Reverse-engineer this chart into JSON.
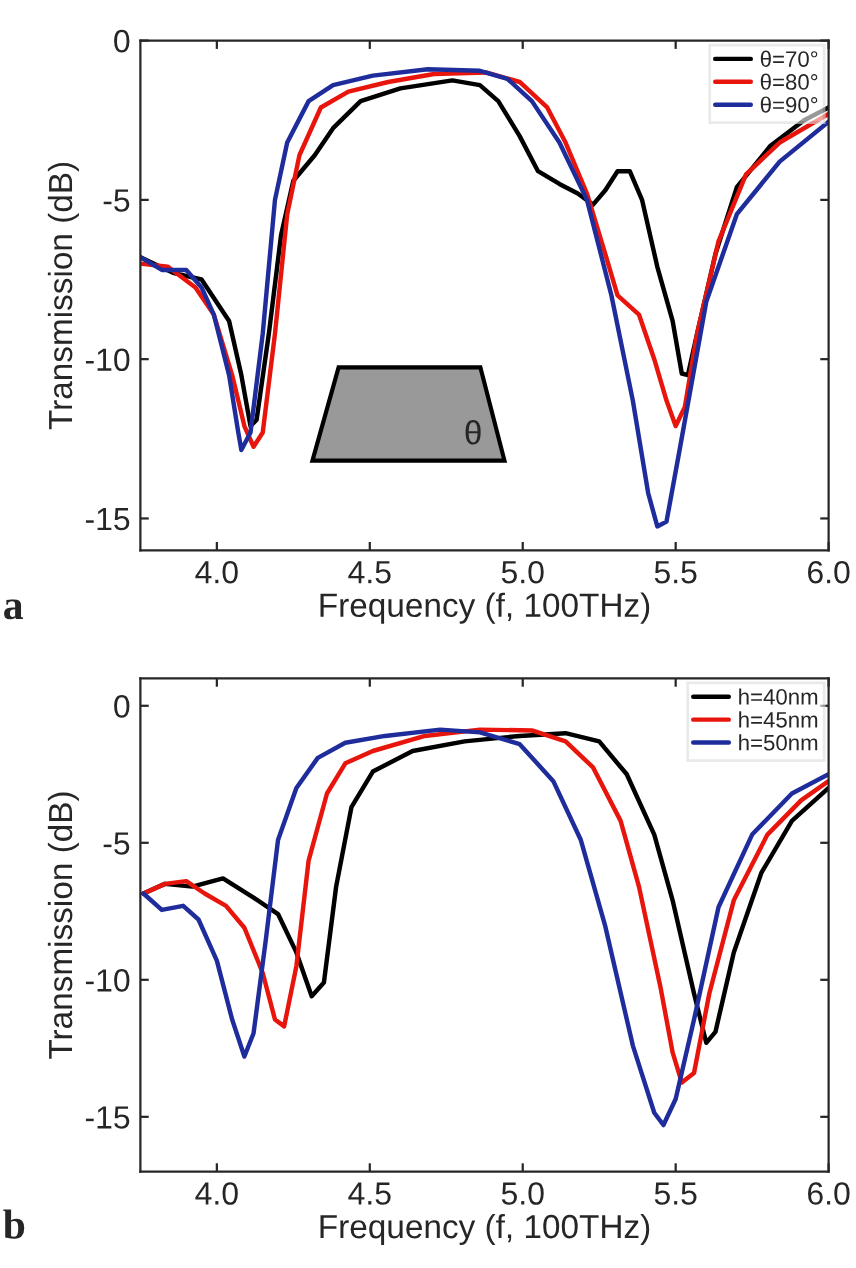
{
  "chart_data": [
    {
      "type": "line",
      "xlabel": "Frequency (f, 100THz)",
      "ylabel": "Transmission (dB)",
      "xlim": [
        3.75,
        6.0
      ],
      "ylim": [
        -16,
        0
      ],
      "xticks": [
        {
          "value": 4,
          "label": "4.0"
        },
        {
          "value": 4.5,
          "label": "4.5"
        },
        {
          "value": 5,
          "label": "5.0"
        },
        {
          "value": 5.5,
          "label": "5.5"
        },
        {
          "value": 6,
          "label": "6.0"
        }
      ],
      "yticks": [
        0,
        -5,
        -10,
        -15
      ],
      "legend": "top right",
      "grid": false,
      "annotations": [
        "a",
        "θ"
      ],
      "series": [
        {
          "name": "θ=70°",
          "color": "#000000",
          "x": [
            3.75,
            3.86,
            3.95,
            4.04,
            4.08,
            4.11,
            4.13,
            4.17,
            4.21,
            4.25,
            4.32,
            4.38,
            4.47,
            4.6,
            4.77,
            4.86,
            4.92,
            4.99,
            5.05,
            5.12,
            5.18,
            5.23,
            5.27,
            5.31,
            5.35,
            5.39,
            5.44,
            5.49,
            5.52,
            5.54,
            5.57,
            5.63,
            5.7,
            5.81,
            5.92,
            6.0
          ],
          "values": [
            -6.8,
            -7.3,
            -7.5,
            -8.8,
            -10.5,
            -12.1,
            -11.9,
            -9.2,
            -6.1,
            -4.4,
            -3.6,
            -2.75,
            -1.9,
            -1.5,
            -1.25,
            -1.4,
            -1.9,
            -3.0,
            -4.1,
            -4.5,
            -4.8,
            -5.15,
            -4.7,
            -4.1,
            -4.1,
            -5.0,
            -7.1,
            -8.8,
            -10.45,
            -10.5,
            -9.2,
            -6.7,
            -4.6,
            -3.3,
            -2.5,
            -2.1
          ]
        },
        {
          "name": "θ=80°",
          "color": "#e8150d",
          "x": [
            3.75,
            3.84,
            3.93,
            3.99,
            4.05,
            4.09,
            4.12,
            4.15,
            4.19,
            4.23,
            4.27,
            4.34,
            4.43,
            4.56,
            4.71,
            4.88,
            4.99,
            5.08,
            5.14,
            5.21,
            5.27,
            5.31,
            5.38,
            5.43,
            5.47,
            5.5,
            5.53,
            5.57,
            5.64,
            5.73,
            5.84,
            6.0
          ],
          "values": [
            -7.0,
            -7.1,
            -7.75,
            -8.6,
            -10.5,
            -12.1,
            -12.75,
            -12.3,
            -9.2,
            -5.45,
            -3.6,
            -2.1,
            -1.6,
            -1.3,
            -1.05,
            -1.0,
            -1.3,
            -2.1,
            -3.2,
            -4.8,
            -6.7,
            -8.0,
            -8.6,
            -10.0,
            -11.3,
            -12.1,
            -11.5,
            -9.2,
            -6.3,
            -4.2,
            -3.2,
            -2.3
          ]
        },
        {
          "name": "θ=90°",
          "color": "#1f2d9c",
          "x": [
            3.75,
            3.82,
            3.9,
            3.95,
            3.99,
            4.04,
            4.07,
            4.08,
            4.11,
            4.15,
            4.19,
            4.23,
            4.3,
            4.38,
            4.51,
            4.69,
            4.86,
            4.95,
            5.03,
            5.12,
            5.21,
            5.29,
            5.36,
            5.41,
            5.44,
            5.47,
            5.51,
            5.6,
            5.7,
            5.84,
            6.0
          ],
          "values": [
            -6.8,
            -7.2,
            -7.2,
            -7.75,
            -8.6,
            -10.5,
            -12.3,
            -12.85,
            -12.3,
            -9.2,
            -5.0,
            -3.2,
            -1.9,
            -1.4,
            -1.1,
            -0.9,
            -0.95,
            -1.2,
            -1.9,
            -3.2,
            -5.0,
            -8.0,
            -11.3,
            -14.2,
            -15.25,
            -15.1,
            -13.0,
            -8.2,
            -5.45,
            -3.8,
            -2.55
          ]
        }
      ]
    },
    {
      "type": "line",
      "xlabel": "Frequency (f, 100THz)",
      "ylabel": "Transmission (dB)",
      "xlim": [
        3.75,
        6.0
      ],
      "ylim": [
        -17,
        1
      ],
      "xticks": [
        {
          "value": 4,
          "label": "4.0"
        },
        {
          "value": 4.5,
          "label": "4.5"
        },
        {
          "value": 5,
          "label": "5.0"
        },
        {
          "value": 5.5,
          "label": "5.5"
        },
        {
          "value": 6,
          "label": "6.0"
        }
      ],
      "yticks": [
        0,
        -5,
        -10,
        -15
      ],
      "legend": "top right",
      "grid": false,
      "annotations": [
        "b"
      ],
      "series": [
        {
          "name": "h=40nm",
          "color": "#000000",
          "x": [
            3.76,
            3.83,
            3.92,
            4.02,
            4.12,
            4.2,
            4.26,
            4.31,
            4.35,
            4.39,
            4.44,
            4.51,
            4.64,
            4.81,
            4.99,
            5.14,
            5.25,
            5.34,
            5.43,
            5.49,
            5.56,
            5.6,
            5.63,
            5.69,
            5.78,
            5.88,
            6.0
          ],
          "values": [
            -6.85,
            -6.5,
            -6.6,
            -6.3,
            -7.0,
            -7.6,
            -9.0,
            -10.6,
            -10.1,
            -6.6,
            -3.7,
            -2.4,
            -1.65,
            -1.3,
            -1.1,
            -1.0,
            -1.3,
            -2.5,
            -4.7,
            -7.1,
            -10.5,
            -12.3,
            -11.9,
            -9.0,
            -6.1,
            -4.2,
            -3.0
          ]
        },
        {
          "name": "h=45nm",
          "color": "#e8150d",
          "x": [
            3.76,
            3.83,
            3.9,
            3.96,
            4.03,
            4.09,
            4.15,
            4.19,
            4.22,
            4.26,
            4.3,
            4.36,
            4.42,
            4.51,
            4.68,
            4.86,
            5.03,
            5.14,
            5.23,
            5.32,
            5.38,
            5.45,
            5.49,
            5.52,
            5.56,
            5.61,
            5.69,
            5.8,
            5.91,
            6.0
          ],
          "values": [
            -6.85,
            -6.5,
            -6.4,
            -6.85,
            -7.3,
            -8.1,
            -9.75,
            -11.45,
            -11.7,
            -9.5,
            -5.65,
            -3.2,
            -2.1,
            -1.65,
            -1.1,
            -0.87,
            -0.9,
            -1.3,
            -2.25,
            -4.2,
            -6.6,
            -10.25,
            -12.65,
            -13.75,
            -13.4,
            -10.5,
            -7.1,
            -4.7,
            -3.45,
            -2.75
          ]
        },
        {
          "name": "h=50nm",
          "color": "#1f2d9c",
          "x": [
            3.76,
            3.82,
            3.89,
            3.94,
            4.0,
            4.05,
            4.09,
            4.12,
            4.16,
            4.2,
            4.26,
            4.33,
            4.42,
            4.55,
            4.73,
            4.86,
            4.99,
            5.1,
            5.19,
            5.27,
            5.36,
            5.43,
            5.46,
            5.5,
            5.56,
            5.64,
            5.75,
            5.88,
            6.0
          ],
          "values": [
            -6.85,
            -7.45,
            -7.3,
            -7.8,
            -9.3,
            -11.45,
            -12.8,
            -11.95,
            -8.55,
            -4.9,
            -3.0,
            -1.9,
            -1.35,
            -1.1,
            -0.87,
            -0.97,
            -1.4,
            -2.75,
            -4.9,
            -8.05,
            -12.4,
            -14.85,
            -15.3,
            -14.35,
            -11.45,
            -7.35,
            -4.7,
            -3.2,
            -2.5
          ]
        }
      ]
    }
  ]
}
